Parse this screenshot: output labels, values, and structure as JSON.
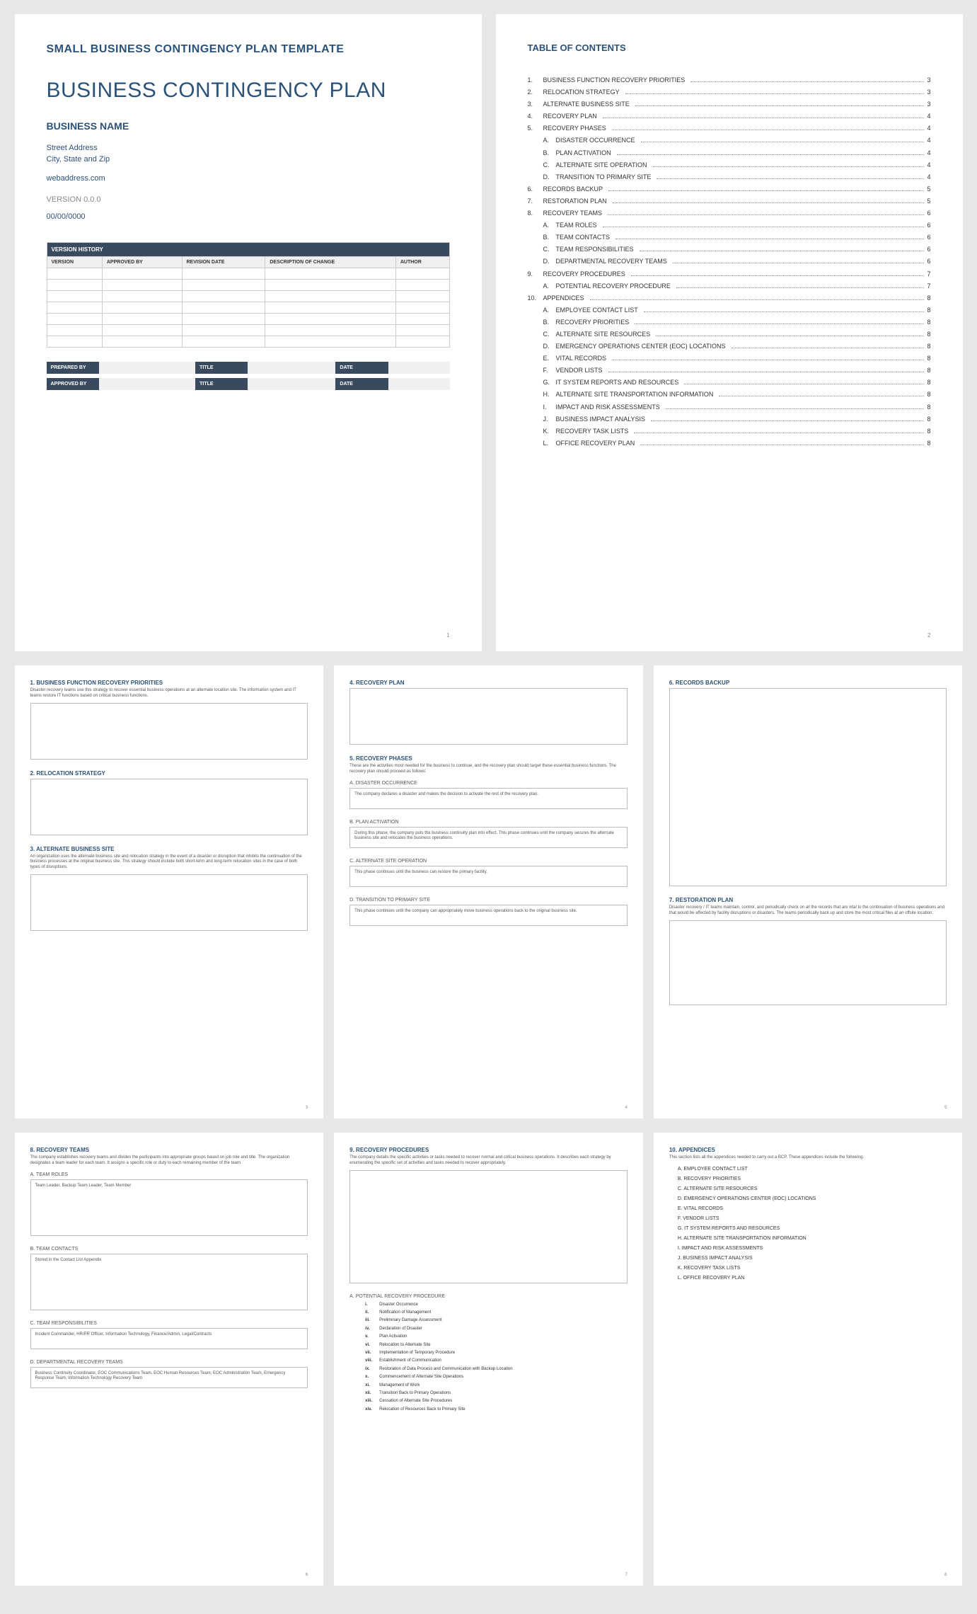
{
  "template_title": "SMALL BUSINESS CONTINGENCY PLAN TEMPLATE",
  "doc_title": "BUSINESS CONTINGENCY PLAN",
  "business_name": "BUSINESS NAME",
  "street": "Street Address",
  "city": "City, State and Zip",
  "web": "webaddress.com",
  "version": "VERSION 0.0.0",
  "date": "00/00/0000",
  "vh_title": "VERSION HISTORY",
  "vh_cols": [
    "VERSION",
    "APPROVED BY",
    "REVISION DATE",
    "DESCRIPTION OF CHANGE",
    "AUTHOR"
  ],
  "sig": {
    "prepared": "PREPARED BY",
    "approved": "APPROVED BY",
    "title": "TITLE",
    "date": "DATE"
  },
  "toc_title": "TABLE OF CONTENTS",
  "toc": [
    {
      "n": "1.",
      "t": "BUSINESS FUNCTION RECOVERY PRIORITIES",
      "p": "3"
    },
    {
      "n": "2.",
      "t": "RELOCATION STRATEGY",
      "p": "3"
    },
    {
      "n": "3.",
      "t": "ALTERNATE BUSINESS SITE",
      "p": "3"
    },
    {
      "n": "4.",
      "t": "RECOVERY PLAN",
      "p": "4"
    },
    {
      "n": "5.",
      "t": "RECOVERY PHASES",
      "p": "4"
    },
    {
      "n": "A.",
      "t": "DISASTER OCCURRENCE",
      "p": "4",
      "sub": true
    },
    {
      "n": "B.",
      "t": "PLAN ACTIVATION",
      "p": "4",
      "sub": true
    },
    {
      "n": "C.",
      "t": "ALTERNATE SITE OPERATION",
      "p": "4",
      "sub": true
    },
    {
      "n": "D.",
      "t": "TRANSITION TO PRIMARY SITE",
      "p": "4",
      "sub": true
    },
    {
      "n": "6.",
      "t": "RECORDS BACKUP",
      "p": "5"
    },
    {
      "n": "7.",
      "t": "RESTORATION PLAN",
      "p": "5"
    },
    {
      "n": "8.",
      "t": "RECOVERY TEAMS",
      "p": "6"
    },
    {
      "n": "A.",
      "t": "TEAM ROLES",
      "p": "6",
      "sub": true
    },
    {
      "n": "B.",
      "t": "TEAM CONTACTS",
      "p": "6",
      "sub": true
    },
    {
      "n": "C.",
      "t": "TEAM RESPONSIBILITIES",
      "p": "6",
      "sub": true
    },
    {
      "n": "D.",
      "t": "DEPARTMENTAL RECOVERY TEAMS",
      "p": "6",
      "sub": true
    },
    {
      "n": "9.",
      "t": "RECOVERY PROCEDURES",
      "p": "7"
    },
    {
      "n": "A.",
      "t": "POTENTIAL RECOVERY PROCEDURE",
      "p": "7",
      "sub": true
    },
    {
      "n": "10.",
      "t": "APPENDICES",
      "p": "8"
    },
    {
      "n": "A.",
      "t": "EMPLOYEE CONTACT LIST",
      "p": "8",
      "sub": true
    },
    {
      "n": "B.",
      "t": "RECOVERY PRIORITIES",
      "p": "8",
      "sub": true
    },
    {
      "n": "C.",
      "t": "ALTERNATE SITE RESOURCES",
      "p": "8",
      "sub": true
    },
    {
      "n": "D.",
      "t": "EMERGENCY OPERATIONS CENTER (EOC) LOCATIONS",
      "p": "8",
      "sub": true
    },
    {
      "n": "E.",
      "t": "VITAL RECORDS",
      "p": "8",
      "sub": true
    },
    {
      "n": "F.",
      "t": "VENDOR LISTS",
      "p": "8",
      "sub": true
    },
    {
      "n": "G.",
      "t": "IT SYSTEM REPORTS AND RESOURCES",
      "p": "8",
      "sub": true
    },
    {
      "n": "H.",
      "t": "ALTERNATE SITE TRANSPORTATION INFORMATION",
      "p": "8",
      "sub": true
    },
    {
      "n": "I.",
      "t": "IMPACT AND RISK ASSESSMENTS",
      "p": "8",
      "sub": true
    },
    {
      "n": "J.",
      "t": "BUSINESS IMPACT ANALYSIS",
      "p": "8",
      "sub": true
    },
    {
      "n": "K.",
      "t": "RECOVERY TASK LISTS",
      "p": "8",
      "sub": true
    },
    {
      "n": "L.",
      "t": "OFFICE RECOVERY PLAN",
      "p": "8",
      "sub": true
    }
  ],
  "p3": {
    "s1_h": "1. BUSINESS FUNCTION RECOVERY PRIORITIES",
    "s1_d": "Disaster recovery teams use this strategy to recover essential business operations at an alternate location site. The information system and IT teams restore IT functions based on critical business functions.",
    "s2_h": "2. RELOCATION STRATEGY",
    "s3_h": "3. ALTERNATE BUSINESS SITE",
    "s3_d": "An organization uses the alternate business site and relocation strategy in the event of a disaster or disruption that inhibits the continuation of the business processes at the original business site. This strategy should include both short-term and long-term relocation sites in the case of both types of disruptions."
  },
  "p4": {
    "s4_h": "4. RECOVERY PLAN",
    "s5_h": "5. RECOVERY PHASES",
    "s5_d": "These are the activities most needed for the business to continue, and the recovery plan should target these essential business functions. The recovery plan should proceed as follows:",
    "a_h": "A. DISASTER OCCURRENCE",
    "a_t": "The company declares a disaster and makes the decision to activate the rest of the recovery plan.",
    "b_h": "B. PLAN ACTIVATION",
    "b_t": "During this phase, the company puts the business continuity plan into effect. This phase continues until the company secures the alternate business site and relocates the business operations.",
    "c_h": "C. ALTERNATE SITE OPERATION",
    "c_t": "This phase continues until the business can restore the primary facility.",
    "d_h": "D. TRANSITION TO PRIMARY SITE",
    "d_t": "This phase continues until the company can appropriately move business operations back to the original business site."
  },
  "p5": {
    "s6_h": "6. RECORDS BACKUP",
    "s7_h": "7. RESTORATION PLAN",
    "s7_d": "Disaster recovery / IT teams maintain, control, and periodically check on all the records that are vital to the continuation of business operations and that would be affected by facility disruptions or disasters. The teams periodically back up and store the most critical files at an offsite location."
  },
  "p6": {
    "s8_h": "8. RECOVERY TEAMS",
    "s8_d": "The company establishes recovery teams and divides the participants into appropriate groups based on job role and title. The organization designates a team leader for each team. It assigns a specific role or duty to each remaining member of the team.",
    "a_h": "A. TEAM ROLES",
    "a_t": "Team Leader, Backup Team Leader, Team Member",
    "b_h": "B. TEAM CONTACTS",
    "b_t": "Stored in the Contact List Appendix",
    "c_h": "C. TEAM RESPONSIBILITIES",
    "c_t": "Incident Commander, HR/PR Officer, Information Technology, Finance/Admin, Legal/Contracts",
    "d_h": "D. DEPARTMENTAL RECOVERY TEAMS",
    "d_t": "Business Continuity Coordinator, EOC Communications Team, EOC Human Resources Team, EOC Administration Team, Emergency Response Team, Information Technology Recovery Team"
  },
  "p7": {
    "s9_h": "9. RECOVERY PROCEDURES",
    "s9_d": "The company details the specific activities or tasks needed to recover normal and critical business operations. It describes each strategy by enumerating the specific set of activities and tasks needed to recover appropriately.",
    "a_h": "A. POTENTIAL RECOVERY PROCEDURE",
    "steps": [
      "Disaster Occurrence",
      "Notification of Management",
      "Preliminary Damage Assessment",
      "Declaration of Disaster",
      "Plan Activation",
      "Relocation to Alternate Site",
      "Implementation of Temporary Procedure",
      "Establishment of Communication",
      "Restoration of Data Process and Communication with Backup Location",
      "Commencement of Alternate Site Operations",
      "Management of Work",
      "Transition Back to Primary Operations",
      "Cessation of Alternate Site Procedures",
      "Relocation of Resources Back to Primary Site"
    ],
    "roman": [
      "i.",
      "ii.",
      "iii.",
      "iv.",
      "v.",
      "vi.",
      "vii.",
      "viii.",
      "ix.",
      "x.",
      "xi.",
      "xii.",
      "xiii.",
      "xiv."
    ]
  },
  "p8": {
    "s10_h": "10.  APPENDICES",
    "s10_d": "This section lists all the appendices needed to carry out a BCP. These appendices include the following:",
    "items": [
      "A. EMPLOYEE CONTACT LIST",
      "B. RECOVERY PRIORITIES",
      "C. ALTERNATE SITE RESOURCES",
      "D. EMERGENCY OPERATIONS CENTER (EOC) LOCATIONS",
      "E. VITAL RECORDS",
      "F. VENDOR LISTS",
      "G. IT SYSTEM REPORTS AND RESOURCES",
      "H. ALTERNATE SITE TRANSPORTATION INFORMATION",
      "I. IMPACT AND RISK ASSESSMENTS",
      "J. BUSINESS IMPACT ANALYSIS",
      "K. RECOVERY TASK LISTS",
      "L. OFFICE RECOVERY PLAN"
    ]
  },
  "colors": {
    "heading": "#2b5278",
    "dark_hdr": "#3a4a5e",
    "light_bg": "#f0f0f0",
    "border": "#ccc",
    "page_bg": "#ffffff",
    "canvas_bg": "#e8e8e8"
  }
}
